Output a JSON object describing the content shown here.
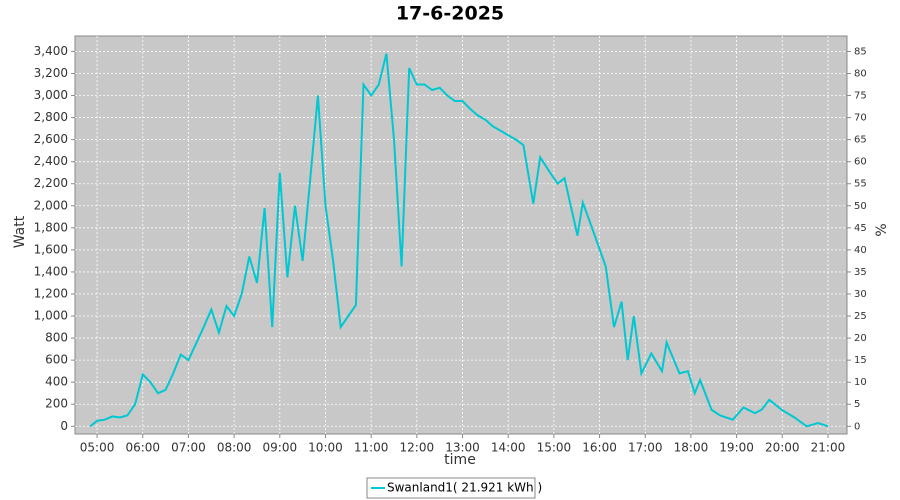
{
  "chart_data": {
    "type": "line",
    "title": "17-6-2025",
    "x_label": "time",
    "y_label": "Watt",
    "y2_label": "%",
    "x": [
      "04:51",
      "05:00",
      "05:10",
      "05:20",
      "05:30",
      "05:40",
      "05:50",
      "06:00",
      "06:10",
      "06:20",
      "06:30",
      "06:40",
      "06:50",
      "07:00",
      "07:10",
      "07:20",
      "07:30",
      "07:40",
      "07:50",
      "08:00",
      "08:10",
      "08:20",
      "08:30",
      "08:40",
      "08:50",
      "09:00",
      "09:10",
      "09:20",
      "09:30",
      "09:40",
      "09:50",
      "10:00",
      "10:10",
      "10:20",
      "10:30",
      "10:40",
      "10:50",
      "11:00",
      "11:10",
      "11:20",
      "11:30",
      "11:40",
      "11:50",
      "12:00",
      "12:10",
      "12:20",
      "12:30",
      "12:40",
      "12:50",
      "13:00",
      "13:10",
      "13:20",
      "13:30",
      "13:40",
      "13:50",
      "14:00",
      "14:10",
      "14:20",
      "14:33",
      "14:42",
      "14:55",
      "15:05",
      "15:14",
      "15:31",
      "15:38",
      "15:50",
      "16:08",
      "16:19",
      "16:29",
      "16:37",
      "16:45",
      "16:55",
      "17:08",
      "17:22",
      "17:28",
      "17:45",
      "17:56",
      "18:05",
      "18:12",
      "18:27",
      "18:38",
      "18:55",
      "19:09",
      "19:24",
      "19:33",
      "19:43",
      "19:59",
      "20:16",
      "20:32",
      "20:47",
      "21:00"
    ],
    "series": [
      {
        "name": "Swanland1( 21.921 kWh )",
        "color": "#00c8d2",
        "values": [
          0,
          50,
          60,
          90,
          80,
          100,
          200,
          470,
          400,
          300,
          330,
          480,
          650,
          600,
          750,
          900,
          1060,
          850,
          1090,
          1000,
          1200,
          1540,
          1300,
          1980,
          900,
          2300,
          1350,
          2000,
          1500,
          2250,
          3000,
          2000,
          1500,
          900,
          1000,
          1100,
          3100,
          3000,
          3100,
          3380,
          2600,
          1450,
          3250,
          3100,
          3100,
          3050,
          3070,
          3000,
          2950,
          2950,
          2880,
          2820,
          2780,
          2720,
          2680,
          2640,
          2600,
          2550,
          2020,
          2440,
          2300,
          2200,
          2250,
          1730,
          2030,
          1800,
          1450,
          900,
          1130,
          600,
          1000,
          480,
          660,
          500,
          760,
          480,
          500,
          300,
          420,
          150,
          100,
          60,
          170,
          120,
          150,
          240,
          150,
          80,
          0,
          30,
          0
        ]
      }
    ],
    "xlim": [
      "04:31",
      "21:25"
    ],
    "xticks": [
      "05:00",
      "06:00",
      "07:00",
      "08:00",
      "09:00",
      "10:00",
      "11:00",
      "12:00",
      "13:00",
      "14:00",
      "15:00",
      "16:00",
      "17:00",
      "18:00",
      "19:00",
      "20:00",
      "21:00"
    ],
    "ylim": [
      -70,
      3540
    ],
    "yticks": [
      0,
      {
        "value": 200,
        "label": "200"
      },
      400,
      600,
      800,
      {
        "value": 1000,
        "label": "1,000"
      },
      {
        "value": 1200,
        "label": "1,200"
      },
      {
        "value": 1400,
        "label": "1,400"
      },
      {
        "value": 1600,
        "label": "1,600"
      },
      {
        "value": 1800,
        "label": "1,800"
      },
      {
        "value": 2000,
        "label": "2,000"
      },
      {
        "value": 2200,
        "label": "2,200"
      },
      {
        "value": 2400,
        "label": "2,400"
      },
      {
        "value": 2600,
        "label": "2,600"
      },
      {
        "value": 2800,
        "label": "2,800"
      },
      {
        "value": 3000,
        "label": "3,000"
      },
      {
        "value": 3200,
        "label": "3,200"
      },
      {
        "value": 3400,
        "label": "3,400"
      }
    ],
    "y2lim": [
      -1.75,
      88.5
    ],
    "y2ticks": [
      0,
      5,
      10,
      15,
      20,
      25,
      30,
      35,
      40,
      45,
      50,
      55,
      60,
      65,
      70,
      75,
      80,
      85
    ],
    "grid": true,
    "legend": "bottom"
  }
}
